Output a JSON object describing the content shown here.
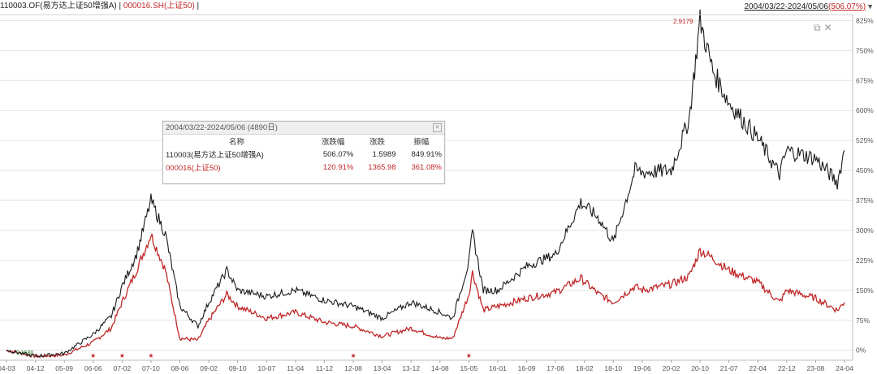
{
  "header": {
    "fund_label": "110003.OF(易方达上证50增强A)",
    "sep1": "|",
    "index_label": "000016.SH(上证50)",
    "sep2": "|",
    "range": "2004/03/22-2024/05/06",
    "range_pct": "(506.07%)",
    "dropdown_icon": "triangle-down-icon"
  },
  "window_icons": [
    "restore-icon",
    "close-icon"
  ],
  "peak_label": "2.9179",
  "start_label": "0.1580",
  "summary": {
    "title": "2004/03/22-2024/05/06 (4890日)",
    "columns": [
      "名称",
      "涨跌幅",
      "涨跌",
      "振幅"
    ],
    "rows": [
      {
        "name": "110003(易方达上证50增强A)",
        "pct": "506.07%",
        "chg": "1.5989",
        "amp": "849.91%"
      },
      {
        "name": "000016(上证50)",
        "pct": "120.91%",
        "chg": "1365.98",
        "amp": "361.08%"
      }
    ]
  },
  "colors": {
    "fund": "#1a1a1a",
    "index": "#c0282a",
    "grid": "#e2e2e2"
  },
  "chart_data": {
    "type": "line",
    "x_ticks": [
      "04-03",
      "04-12",
      "05-09",
      "06-06",
      "07-02",
      "07-10",
      "08-06",
      "09-02",
      "09-10",
      "10-07",
      "11-04",
      "11-12",
      "12-08",
      "13-04",
      "13-12",
      "14-08",
      "15-05",
      "16-01",
      "16-09",
      "17-06",
      "18-02",
      "18-10",
      "19-06",
      "20-02",
      "20-10",
      "21-07",
      "22-04",
      "22-12",
      "23-08",
      "24-04"
    ],
    "y_ticks": [
      "0%",
      "75%",
      "150%",
      "225%",
      "300%",
      "375%",
      "450%",
      "525%",
      "600%",
      "675%",
      "750%",
      "825%"
    ],
    "ylim": [
      -25,
      840
    ],
    "series": [
      {
        "name": "110003(易方达上证50增强A)",
        "x": [
          "04-03",
          "04-12",
          "05-09",
          "06-06",
          "06-11",
          "07-02",
          "07-06",
          "07-10",
          "08-02",
          "08-06",
          "08-11",
          "09-02",
          "09-07",
          "09-10",
          "10-07",
          "11-04",
          "11-12",
          "12-08",
          "13-04",
          "13-12",
          "14-08",
          "14-12",
          "15-05",
          "15-06",
          "15-09",
          "16-01",
          "16-09",
          "17-06",
          "18-01",
          "18-06",
          "18-10",
          "19-04",
          "19-06",
          "20-02",
          "20-07",
          "20-10",
          "21-02",
          "21-07",
          "22-04",
          "22-10",
          "22-12",
          "23-08",
          "24-02",
          "24-04"
        ],
        "y": [
          0,
          -15,
          -8,
          40,
          85,
          160,
          240,
          375,
          290,
          110,
          60,
          120,
          200,
          150,
          135,
          150,
          125,
          110,
          80,
          120,
          95,
          80,
          220,
          295,
          150,
          150,
          210,
          240,
          370,
          330,
          270,
          450,
          445,
          450,
          580,
          825,
          700,
          620,
          530,
          440,
          500,
          480,
          420,
          500
        ]
      },
      {
        "name": "000016(上证50)",
        "x": [
          "04-03",
          "04-12",
          "05-09",
          "06-06",
          "06-11",
          "07-02",
          "07-06",
          "07-10",
          "08-02",
          "08-06",
          "08-11",
          "09-02",
          "09-07",
          "09-10",
          "10-07",
          "11-04",
          "11-12",
          "12-08",
          "13-04",
          "13-12",
          "14-08",
          "14-12",
          "15-05",
          "15-06",
          "15-09",
          "16-01",
          "16-09",
          "17-06",
          "18-01",
          "18-06",
          "18-10",
          "19-04",
          "19-06",
          "20-02",
          "20-07",
          "20-10",
          "21-02",
          "21-07",
          "22-04",
          "22-10",
          "22-12",
          "23-08",
          "24-02",
          "24-04"
        ],
        "y": [
          0,
          -15,
          -12,
          20,
          55,
          120,
          200,
          290,
          200,
          30,
          25,
          75,
          140,
          110,
          80,
          95,
          70,
          60,
          35,
          55,
          30,
          30,
          140,
          195,
          100,
          110,
          130,
          145,
          180,
          140,
          120,
          160,
          150,
          165,
          185,
          250,
          230,
          200,
          170,
          120,
          150,
          130,
          100,
          120
        ]
      }
    ],
    "events": [
      "06-06",
      "07-02",
      "07-10",
      "12-08",
      "15-05"
    ],
    "grid": true,
    "legend": "top-left"
  }
}
